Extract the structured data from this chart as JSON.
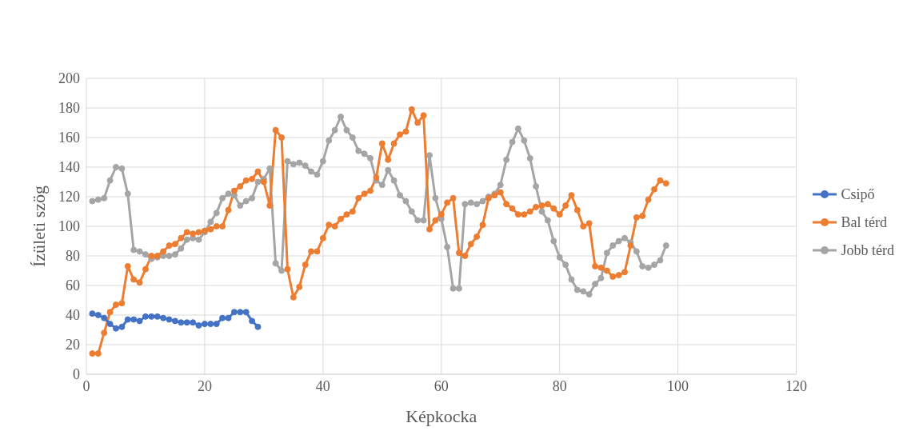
{
  "chart_data": {
    "type": "line",
    "xlabel": "Képkocka",
    "ylabel": "Ízületi szög",
    "x": [
      1,
      2,
      3,
      4,
      5,
      6,
      7,
      8,
      9,
      10,
      11,
      12,
      13,
      14,
      15,
      16,
      17,
      18,
      19,
      20,
      21,
      22,
      23,
      24,
      25,
      26,
      27,
      28,
      29,
      30,
      31,
      32,
      33,
      34,
      35,
      36,
      37,
      38,
      39,
      40,
      41,
      42,
      43,
      44,
      45,
      46,
      47,
      48,
      49,
      50,
      51,
      52,
      53,
      54,
      55,
      56,
      57,
      58,
      59,
      60,
      61,
      62,
      63,
      64,
      65,
      66,
      67,
      68,
      69,
      70,
      71,
      72,
      73,
      74,
      75,
      76,
      77,
      78,
      79,
      80,
      81,
      82,
      83,
      84,
      85,
      86,
      87,
      88,
      89,
      90,
      91,
      92,
      93,
      94,
      95,
      96,
      97,
      98
    ],
    "series": [
      {
        "name": "Csipő",
        "color": "#4472c4",
        "x": [
          1,
          2,
          3,
          4,
          5,
          6,
          7,
          8,
          9,
          10,
          11,
          12,
          13,
          14,
          15,
          16,
          17,
          18,
          19,
          20,
          21,
          22,
          23,
          24,
          25,
          26,
          27,
          28,
          29
        ],
        "values": [
          41,
          40,
          38,
          34,
          31,
          32,
          37,
          37,
          36,
          39,
          39,
          39,
          38,
          37,
          36,
          35,
          35,
          35,
          33,
          34,
          34,
          34,
          38,
          38,
          42,
          42,
          42,
          36,
          32
        ]
      },
      {
        "name": "Bal térd",
        "color": "#ed7d31",
        "values": [
          14,
          14,
          28,
          42,
          47,
          48,
          73,
          64,
          62,
          71,
          80,
          80,
          83,
          87,
          88,
          92,
          96,
          95,
          96,
          97,
          98,
          100,
          100,
          111,
          124,
          127,
          131,
          132,
          137,
          130,
          114,
          165,
          160,
          71,
          52,
          59,
          74,
          83,
          83,
          92,
          101,
          100,
          105,
          108,
          110,
          119,
          122,
          124,
          133,
          156,
          145,
          156,
          162,
          164,
          179,
          170,
          175,
          98,
          104,
          108,
          116,
          119,
          82,
          80,
          88,
          93,
          101,
          119,
          121,
          123,
          115,
          112,
          108,
          108,
          110,
          113,
          114,
          115,
          112,
          108,
          114,
          121,
          111,
          100,
          102,
          73,
          72,
          70,
          66,
          67,
          69,
          87,
          106,
          107,
          118,
          125,
          131,
          129
        ]
      },
      {
        "name": "Jobb térd",
        "color": "#a5a5a5",
        "values": [
          117,
          118,
          119,
          131,
          140,
          139,
          122,
          84,
          83,
          81,
          78,
          79,
          80,
          80,
          81,
          85,
          91,
          92,
          91,
          96,
          103,
          109,
          119,
          122,
          121,
          114,
          117,
          119,
          130,
          132,
          139,
          75,
          70,
          144,
          142,
          143,
          141,
          137,
          135,
          144,
          158,
          165,
          174,
          165,
          160,
          151,
          149,
          146,
          131,
          128,
          138,
          131,
          121,
          117,
          110,
          104,
          104,
          148,
          119,
          105,
          86,
          58,
          58,
          115,
          116,
          115,
          117,
          120,
          122,
          128,
          145,
          157,
          166,
          158,
          146,
          127,
          110,
          104,
          90,
          79,
          74,
          64,
          57,
          56,
          54,
          61,
          65,
          82,
          87,
          90,
          92,
          89,
          83,
          73,
          72,
          74,
          77,
          87
        ]
      }
    ],
    "xlim": [
      0,
      120
    ],
    "xticks": [
      0,
      20,
      40,
      60,
      80,
      100,
      120
    ],
    "ylim": [
      0,
      200
    ],
    "yticks": [
      0,
      20,
      40,
      60,
      80,
      100,
      120,
      140,
      160,
      180,
      200
    ],
    "grid": true,
    "legend": "right",
    "marker": "circle",
    "line_style": "solid"
  }
}
